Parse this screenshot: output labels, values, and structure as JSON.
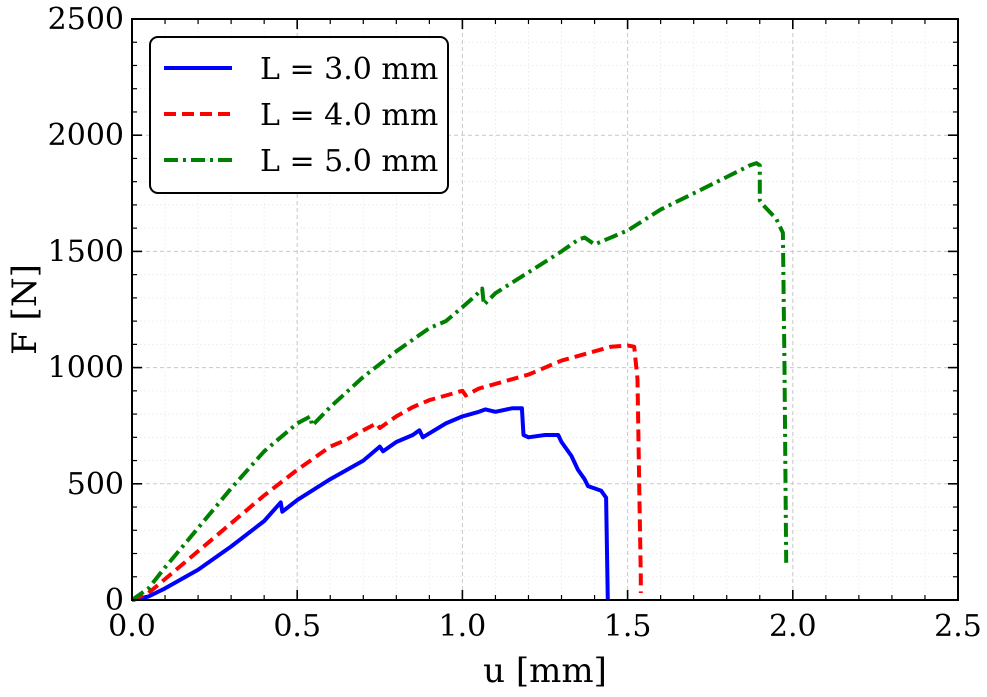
{
  "chart_data": {
    "type": "line",
    "xlabel": "u [mm]",
    "ylabel": "F [N]",
    "xlim": [
      0,
      2.5
    ],
    "ylim": [
      0,
      2500
    ],
    "xticks": [
      "0.0",
      "0.5",
      "1.0",
      "1.5",
      "2.0",
      "2.5"
    ],
    "yticks": [
      "0",
      "500",
      "1000",
      "1500",
      "2000",
      "2500"
    ],
    "grid": true,
    "legend_position": "top-left",
    "series": [
      {
        "name": "L = 3.0 mm",
        "color": "#0000ff",
        "dash": "solid",
        "x": [
          0,
          0.05,
          0.1,
          0.2,
          0.3,
          0.4,
          0.45,
          0.455,
          0.5,
          0.6,
          0.7,
          0.75,
          0.76,
          0.8,
          0.85,
          0.87,
          0.88,
          0.95,
          1.0,
          1.05,
          1.07,
          1.1,
          1.15,
          1.18,
          1.185,
          1.2,
          1.25,
          1.29,
          1.3,
          1.33,
          1.35,
          1.37,
          1.38,
          1.4,
          1.42,
          1.43,
          1.435,
          1.44
        ],
        "y": [
          0,
          15,
          50,
          130,
          230,
          340,
          420,
          380,
          430,
          520,
          600,
          660,
          640,
          680,
          710,
          730,
          700,
          760,
          790,
          810,
          820,
          810,
          825,
          825,
          710,
          700,
          710,
          710,
          680,
          620,
          560,
          520,
          490,
          480,
          470,
          450,
          440,
          0
        ]
      },
      {
        "name": "L = 4.0 mm",
        "color": "#ff0000",
        "dash": "dashed",
        "x": [
          0,
          0.05,
          0.1,
          0.2,
          0.3,
          0.4,
          0.5,
          0.58,
          0.6,
          0.65,
          0.7,
          0.74,
          0.75,
          0.8,
          0.85,
          0.9,
          0.95,
          1.0,
          1.01,
          1.05,
          1.1,
          1.2,
          1.3,
          1.4,
          1.45,
          1.5,
          1.52,
          1.53,
          1.535,
          1.54,
          1.54
        ],
        "y": [
          0,
          30,
          90,
          210,
          330,
          450,
          560,
          640,
          660,
          690,
          730,
          760,
          740,
          790,
          830,
          860,
          880,
          900,
          880,
          910,
          930,
          970,
          1030,
          1070,
          1090,
          1095,
          1090,
          950,
          500,
          100,
          30
        ]
      },
      {
        "name": "L = 5.0 mm",
        "color": "#008000",
        "dash": "dashdot",
        "x": [
          0,
          0.05,
          0.1,
          0.2,
          0.3,
          0.4,
          0.5,
          0.54,
          0.545,
          0.6,
          0.7,
          0.8,
          0.9,
          0.95,
          1.0,
          1.04,
          1.06,
          1.065,
          1.1,
          1.2,
          1.3,
          1.35,
          1.37,
          1.4,
          1.5,
          1.6,
          1.7,
          1.8,
          1.87,
          1.89,
          1.9,
          1.9,
          1.91,
          1.95,
          1.97,
          1.975,
          1.98
        ],
        "y": [
          0,
          50,
          140,
          310,
          480,
          640,
          760,
          790,
          750,
          830,
          960,
          1070,
          1170,
          1200,
          1260,
          1310,
          1340,
          1270,
          1320,
          1410,
          1500,
          1550,
          1560,
          1530,
          1590,
          1680,
          1750,
          1820,
          1870,
          1880,
          1870,
          1720,
          1700,
          1640,
          1580,
          1000,
          160
        ]
      }
    ]
  }
}
